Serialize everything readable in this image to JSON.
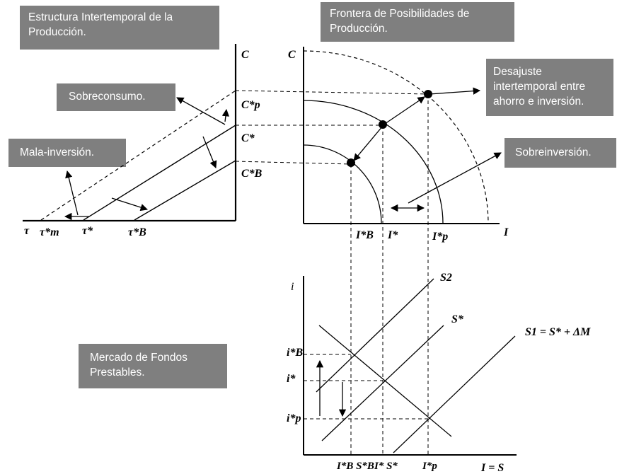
{
  "boxes": {
    "estructura": "Estructura Intertemporal de la\nProducción.",
    "frontera": "Frontera de Posibilidades de\nProducción.",
    "sobreconsumo": "Sobreconsumo.",
    "mala_inversion": "Mala-inversión.",
    "desajuste": "Desajuste\nintertemporal entre\nahorro e inversión.",
    "sobreinversion": "Sobreinversión.",
    "mercado": "Mercado de Fondos\nPrestables."
  },
  "left_panel": {
    "c_axis": "C",
    "cp": "C*p",
    "cstar": "C*",
    "cb": "C*B",
    "tau": "τ",
    "tau_m": "τ*m",
    "tau_star": "τ*",
    "tau_b": "τ*B"
  },
  "right_panel": {
    "c_axis": "C",
    "i_axis": "I",
    "ib": "I*B",
    "istar": "I*",
    "ip": "I*p"
  },
  "bottom_panel": {
    "i_axis": "i",
    "ib": "i*B",
    "istar": "i*",
    "ip": "i*p",
    "s2": "S2",
    "sstar": "S*",
    "s1": "S1 = S* + ΔM",
    "x_ib_sb": "I*B S*B",
    "x_i_s": "I* S*",
    "x_ip": "I*p",
    "x_axis": "I = S"
  },
  "colors": {
    "box_bg": "#7f7f7f",
    "box_text": "#ffffff",
    "ink": "#000000"
  }
}
